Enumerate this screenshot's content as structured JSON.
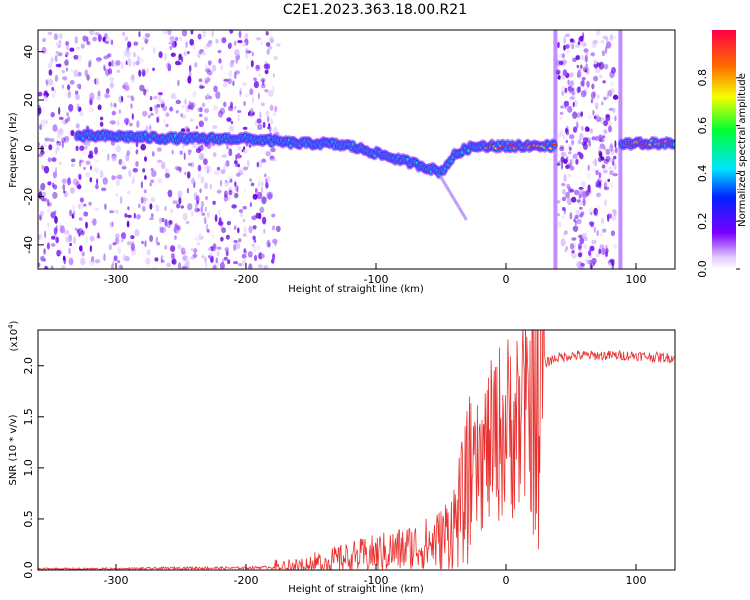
{
  "title": "C2E1.2023.363.18.00.R21",
  "chart_data": [
    {
      "type": "heatmap",
      "xlabel": "Height of straight line (km)",
      "ylabel": "Frequency (Hz)",
      "xlim": [
        -360,
        130
      ],
      "ylim": [
        -50,
        49
      ],
      "xticks": [
        -300,
        -200,
        -100,
        0,
        100
      ],
      "yticks": [
        -40,
        -20,
        0,
        20,
        40
      ],
      "colorbar": {
        "label": "Normalized spectral amplitude",
        "range": [
          0,
          1
        ],
        "ticks": [
          0.0,
          0.2,
          0.4,
          0.6,
          0.8
        ]
      },
      "ridge": {
        "x": [
          -330,
          -300,
          -250,
          -200,
          -180,
          -160,
          -140,
          -120,
          -100,
          -80,
          -60,
          -50,
          -40,
          -30,
          -20,
          0,
          20,
          38,
          90,
          130
        ],
        "y": [
          5,
          5,
          4,
          4,
          3,
          2,
          2,
          1,
          -2,
          -5,
          -8,
          -10,
          -3,
          0,
          1,
          1,
          1,
          1,
          2,
          2
        ]
      }
    },
    {
      "type": "line",
      "xlabel": "Height of straight line (km)",
      "ylabel": "SNR (10 * v/v)",
      "multiplier_label": "(x10",
      "multiplier_exp": "4",
      "xlim": [
        -360,
        130
      ],
      "ylim": [
        0,
        2.35
      ],
      "xticks": [
        -300,
        -200,
        -100,
        0,
        100
      ],
      "yticks": [
        0.0,
        0.5,
        1.0,
        1.5,
        2.0
      ],
      "series": [
        {
          "color": "#e8312f",
          "x": [
            -360,
            -300,
            -250,
            -200,
            -160,
            -140,
            -120,
            -100,
            -80,
            -60,
            -50,
            -40,
            -35,
            -30,
            -25,
            -20,
            -15,
            -10,
            -5,
            0,
            5,
            10,
            15,
            20,
            25,
            30,
            35,
            40,
            50,
            60,
            80,
            100,
            120,
            130
          ],
          "y": [
            0.01,
            0.01,
            0.02,
            0.02,
            0.04,
            0.08,
            0.12,
            0.16,
            0.2,
            0.25,
            0.3,
            0.45,
            0.6,
            0.8,
            1.0,
            1.15,
            1.3,
            1.4,
            1.5,
            1.55,
            1.6,
            1.65,
            1.7,
            1.8,
            1.95,
            2.02,
            2.06,
            2.08,
            2.1,
            2.1,
            2.1,
            2.1,
            2.08,
            2.08
          ]
        }
      ]
    }
  ]
}
